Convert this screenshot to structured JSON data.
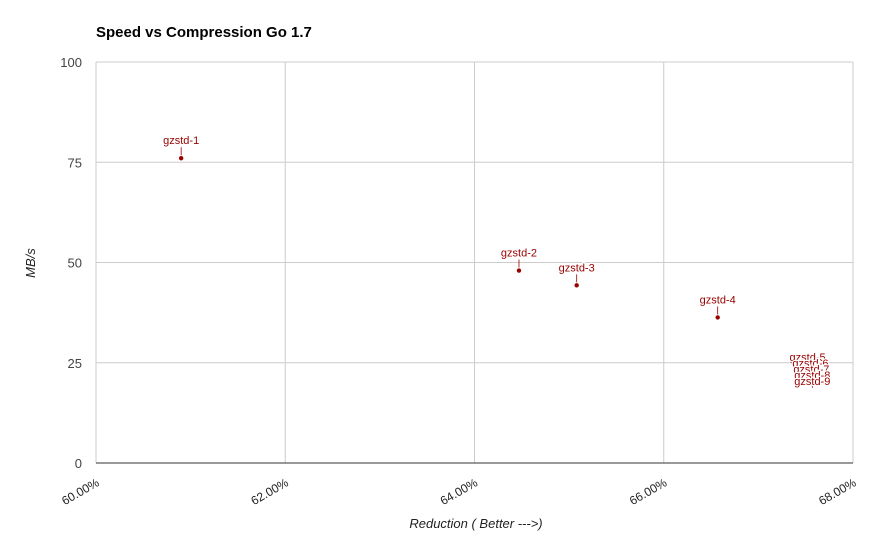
{
  "chart_data": {
    "type": "scatter",
    "title": "Speed vs Compression Go 1.7",
    "xlabel": "Reduction ( Better --->)",
    "ylabel": "MB/s",
    "xlim": [
      60.0,
      68.0
    ],
    "ylim": [
      0,
      100
    ],
    "x_ticks": [
      "60.00%",
      "62.00%",
      "64.00%",
      "66.00%",
      "68.00%"
    ],
    "x_tick_values": [
      60,
      62,
      64,
      66,
      68
    ],
    "y_ticks": [
      "0",
      "25",
      "50",
      "75",
      "100"
    ],
    "y_tick_values": [
      0,
      25,
      50,
      75,
      100
    ],
    "grid": true,
    "legend": "none",
    "color": "#990000",
    "points": [
      {
        "label": "gzstd-1",
        "x": 60.9,
        "y": 76.0
      },
      {
        "label": "gzstd-2",
        "x": 64.47,
        "y": 48.0
      },
      {
        "label": "gzstd-3",
        "x": 65.08,
        "y": 44.3
      },
      {
        "label": "gzstd-4",
        "x": 66.57,
        "y": 36.3
      },
      {
        "label": "gzstd-5",
        "x": 67.52,
        "y": 22.0
      },
      {
        "label": "gzstd-6",
        "x": 67.55,
        "y": 21.3
      },
      {
        "label": "gzstd-7",
        "x": 67.56,
        "y": 20.8
      },
      {
        "label": "gzstd-8",
        "x": 67.57,
        "y": 20.5
      },
      {
        "label": "gzstd-9",
        "x": 67.57,
        "y": 20.2
      }
    ]
  }
}
